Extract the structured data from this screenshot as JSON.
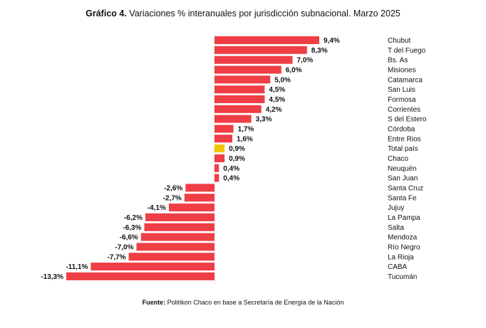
{
  "title": {
    "prefix": "Gráfico 4.",
    "text": "Variaciones % interanuales por jurisdicción subnacional. Marzo 2025"
  },
  "source": {
    "label": "Fuente:",
    "text": "Politikon Chaco en base a Secretaría de Energía de la Nación"
  },
  "colors": {
    "bar": "#ef3e45",
    "highlight": "#f5c400",
    "axis": "#e4e4e4"
  },
  "chart_data": {
    "type": "bar",
    "orientation": "horizontal",
    "title": "Gráfico 4. Variaciones % interanuales por jurisdicción subnacional. Marzo 2025",
    "categories": [
      "Chubut",
      "T del Fuego",
      "Bs. As",
      "Misiones",
      "Catamarca",
      "San Luis",
      "Formosa",
      "Corrientes",
      "S del Estero",
      "Córdoba",
      "Entre Rios",
      "Total país",
      "Chaco",
      "Neuquén",
      "San Juan",
      "Santa Cruz",
      "Santa Fe",
      "Jujuy",
      "La Pampa",
      "Salta",
      "Mendoza",
      "Río Negro",
      "La Rioja",
      "CABA",
      "Tucumán"
    ],
    "values": [
      9.4,
      8.3,
      7.0,
      6.0,
      5.0,
      4.5,
      4.5,
      4.2,
      3.3,
      1.7,
      1.6,
      0.9,
      0.9,
      0.4,
      0.4,
      -2.6,
      -2.7,
      -4.1,
      -6.2,
      -6.3,
      -6.6,
      -7.0,
      -7.7,
      -11.1,
      -13.3
    ],
    "value_labels": [
      "9,4%",
      "8,3%",
      "7,0%",
      "6,0%",
      "5,0%",
      "4,5%",
      "4,5%",
      "4,2%",
      "3,3%",
      "1,7%",
      "1,6%",
      "0,9%",
      "0,9%",
      "0,4%",
      "0,4%",
      "-2,6%",
      "-2,7%",
      "-4,1%",
      "-6,2%",
      "-6,3%",
      "-6,6%",
      "-7,0%",
      "-7,7%",
      "-11,1%",
      "-13,3%"
    ],
    "highlight": "Total país",
    "xlim": [
      -13.3,
      9.4
    ],
    "grid": false,
    "legend": "none"
  }
}
